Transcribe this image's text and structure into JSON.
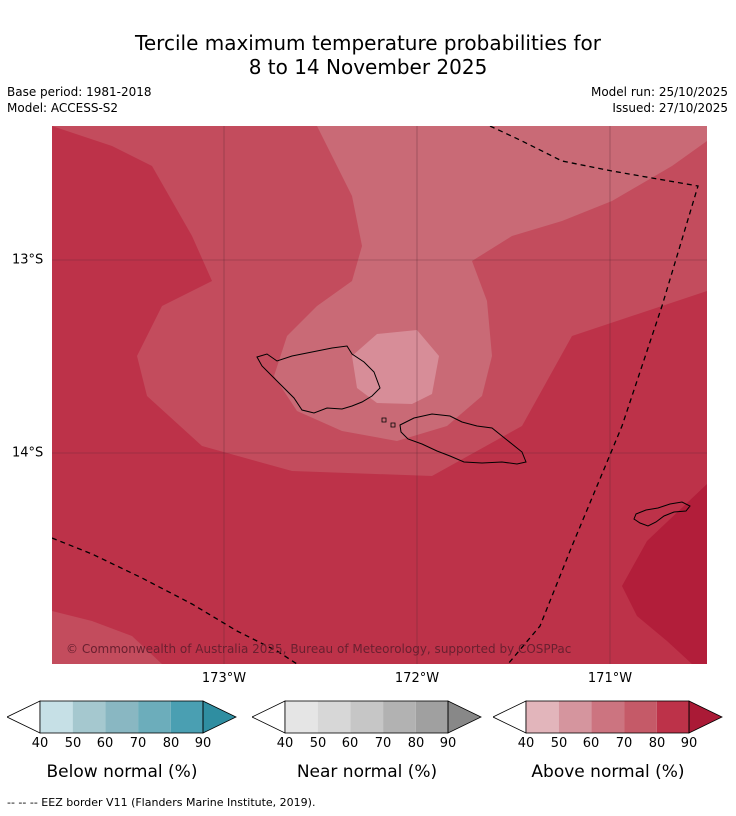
{
  "title_line1": "Tercile maximum temperature probabilities for",
  "title_line2": "8 to 14 November 2025",
  "meta": {
    "base_period": "Base period: 1981-2018",
    "model": "Model: ACCESS-S2",
    "model_run": "Model run: 25/10/2025",
    "issued": "Issued: 27/10/2025"
  },
  "map": {
    "copyright": "© Commonwealth of Australia 2025, Bureau of Meteorology, supported by COSPPac",
    "x_ticks": [
      "173°W",
      "172°W",
      "171°W"
    ],
    "y_ticks": [
      "13°S",
      "14°S"
    ],
    "colors": {
      "above_50": "#d78d98",
      "above_60": "#c96a76",
      "above_70": "#c34c5d",
      "above_80": "#bd3249",
      "above_90": "#b21e3a",
      "coast": "#000000",
      "eez": "#000000"
    }
  },
  "legend": {
    "tick_labels": [
      "40",
      "50",
      "60",
      "70",
      "80",
      "90"
    ],
    "below": {
      "title": "Below normal (%)",
      "colors": [
        "#c6e0e6",
        "#a5c8cf",
        "#89b7c2",
        "#6cadbb",
        "#4a9fb2",
        "#2f8ea1"
      ]
    },
    "near": {
      "title": "Near normal (%)",
      "colors": [
        "#e5e5e5",
        "#d7d7d7",
        "#c6c6c6",
        "#b2b2b2",
        "#a0a0a0",
        "#888888"
      ]
    },
    "above": {
      "title": "Above normal (%)",
      "colors": [
        "#e2b5bb",
        "#d5959e",
        "#cc7480",
        "#c55a68",
        "#bd3249",
        "#aa1a36"
      ]
    }
  },
  "footnote": "--  --  -- EEZ border V11 (Flanders Marine Institute, 2019)."
}
